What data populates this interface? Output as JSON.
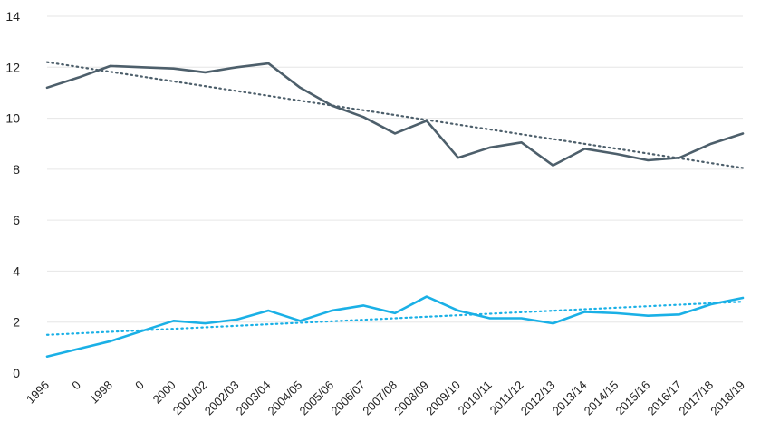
{
  "chart_data": {
    "type": "line",
    "categories": [
      "1996",
      "0",
      "1998",
      "0",
      "2000",
      "2001/02",
      "2002/03",
      "2003/04",
      "2004/05",
      "2005/06",
      "2006/07",
      "2007/08",
      "2008/09",
      "2009/10",
      "2010/11",
      "2011/12",
      "2012/13",
      "2013/14",
      "2014/15",
      "2015/16",
      "2016/17",
      "2017/18",
      "2018/19"
    ],
    "series": [
      {
        "color": "#4d5f6b",
        "values": [
          11.2,
          11.6,
          12.05,
          12.0,
          11.95,
          11.8,
          12.0,
          12.15,
          11.2,
          10.5,
          10.05,
          9.4,
          9.9,
          8.45,
          8.85,
          9.05,
          8.15,
          8.8,
          8.6,
          8.35,
          8.45,
          9.0,
          9.4
        ],
        "trend": {
          "start": 12.2,
          "end": 8.05,
          "style": "dotted"
        }
      },
      {
        "color": "#1ab0e6",
        "values": [
          0.65,
          0.95,
          1.25,
          1.65,
          2.05,
          1.95,
          2.1,
          2.45,
          2.05,
          2.45,
          2.65,
          2.35,
          3.0,
          2.45,
          2.15,
          2.15,
          1.95,
          2.4,
          2.35,
          2.25,
          2.3,
          2.7,
          2.95
        ],
        "trend": {
          "start": 1.5,
          "end": 2.8,
          "style": "dotted"
        }
      }
    ],
    "ylim": [
      0,
      14
    ],
    "yticks": [
      0,
      2,
      4,
      6,
      8,
      10,
      12,
      14
    ],
    "grid": true,
    "legend": "none"
  }
}
